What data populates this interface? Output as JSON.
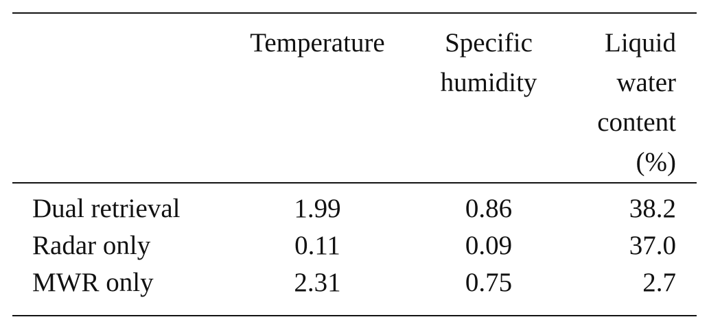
{
  "table": {
    "headers": [
      {
        "lines": [
          ""
        ]
      },
      {
        "lines": [
          "Temperature"
        ]
      },
      {
        "lines": [
          "Specific",
          "humidity"
        ]
      },
      {
        "lines": [
          "Liquid",
          "water",
          "content",
          "(%)"
        ]
      }
    ],
    "rows": [
      {
        "label": "Dual retrieval",
        "values": [
          "1.99",
          "0.86",
          "38.2"
        ]
      },
      {
        "label": "Radar only",
        "values": [
          "0.11",
          "0.09",
          "37.0"
        ]
      },
      {
        "label": "MWR only",
        "values": [
          "2.31",
          "0.75",
          "2.7"
        ]
      }
    ]
  }
}
